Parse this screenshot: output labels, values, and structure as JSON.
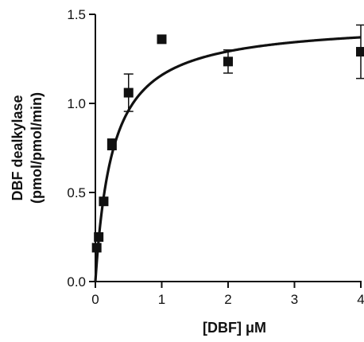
{
  "chart_data": {
    "type": "scatter",
    "title": "",
    "xlabel": "[DBF] μM",
    "ylabel_line1": "DBF dealkylase",
    "ylabel_line2": "(pmol/pmol/min)",
    "xlim": [
      0,
      4
    ],
    "ylim": [
      0,
      1.5
    ],
    "xticks": [
      0,
      1,
      2,
      3,
      4
    ],
    "xtick_labels": [
      "0",
      "1",
      "2",
      "3",
      "4"
    ],
    "yticks": [
      0.0,
      0.5,
      1.0,
      1.5
    ],
    "ytick_labels": [
      "0.0",
      "0.5",
      "1.0",
      "1.5"
    ],
    "grid": false,
    "legend": "none",
    "marker": "square",
    "color": "#111111",
    "points": [
      {
        "x": 0.02,
        "y": 0.19,
        "err": 0.0
      },
      {
        "x": 0.05,
        "y": 0.25,
        "err": 0.0
      },
      {
        "x": 0.125,
        "y": 0.45,
        "err": 0.0
      },
      {
        "x": 0.25,
        "y": 0.77,
        "err": 0.03
      },
      {
        "x": 0.5,
        "y": 1.06,
        "err": 0.105
      },
      {
        "x": 1.0,
        "y": 1.36,
        "err": 0.0
      },
      {
        "x": 2.0,
        "y": 1.235,
        "err": 0.065
      },
      {
        "x": 4.0,
        "y": 1.29,
        "err": 0.15
      }
    ],
    "fit": {
      "model": "Michaelis-Menten",
      "Vmax": 1.46,
      "Km": 0.26
    }
  }
}
